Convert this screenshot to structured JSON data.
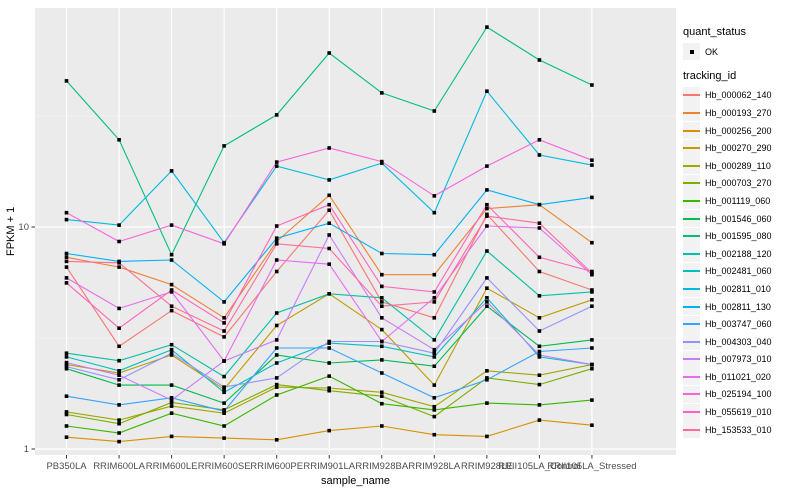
{
  "chart_data": {
    "type": "line",
    "title": "",
    "xlabel": "sample_name",
    "ylabel": "FPKM + 1",
    "yscale": "log10",
    "ylim": [
      0.93,
      97
    ],
    "yticks": [
      1,
      10
    ],
    "minor_gridlines_at": [
      3.162,
      31.62
    ],
    "grid": true,
    "legend_position": "right",
    "point_shape": "square",
    "point_color": "#000000",
    "categories": [
      "PB350LA",
      "RRIM600LA",
      "RRIM600LE",
      "RRIM600SE",
      "RRIM600PE",
      "RRIM901LA",
      "RRIM928BA",
      "RRIM928LA",
      "RRIM928LE",
      "RRII105LA_Control",
      "RRII105LA_Stressed"
    ],
    "legend": {
      "quant_status_title": "quant_status",
      "quant_status_items": [
        {
          "label": "OK",
          "shape": "point",
          "color": "#000000"
        }
      ],
      "tracking_id_title": "tracking_id"
    },
    "series": [
      {
        "name": "Hb_000062_140",
        "color": "#F8766D",
        "values": [
          6.6,
          2.9,
          4.2,
          3.2,
          6.3,
          11.9,
          4.6,
          3.9,
          11.4,
          6.3,
          5.2
        ]
      },
      {
        "name": "Hb_000193_270",
        "color": "#EA8331",
        "values": [
          7.3,
          6.6,
          5.5,
          3.9,
          8.6,
          13.9,
          6.1,
          6.1,
          12.1,
          12.6,
          8.5
        ]
      },
      {
        "name": "Hb_000256_200",
        "color": "#D89000",
        "values": [
          1.13,
          1.08,
          1.14,
          1.12,
          1.1,
          1.21,
          1.27,
          1.16,
          1.14,
          1.35,
          1.28
        ]
      },
      {
        "name": "Hb_000270_290",
        "color": "#C09B00",
        "values": [
          2.4,
          2.2,
          2.65,
          1.86,
          3.6,
          5.0,
          3.45,
          1.94,
          5.3,
          3.9,
          4.7
        ]
      },
      {
        "name": "Hb_000289_110",
        "color": "#A3A500",
        "values": [
          1.47,
          1.35,
          1.56,
          1.45,
          1.9,
          1.88,
          1.8,
          1.55,
          2.25,
          2.15,
          2.4
        ]
      },
      {
        "name": "Hb_000703_270",
        "color": "#7CAE00",
        "values": [
          1.43,
          1.3,
          1.62,
          1.5,
          1.95,
          1.83,
          1.73,
          1.4,
          2.09,
          1.95,
          2.3
        ]
      },
      {
        "name": "Hb_001119_060",
        "color": "#39B600",
        "values": [
          1.27,
          1.18,
          1.45,
          1.27,
          1.75,
          2.13,
          1.6,
          1.5,
          1.61,
          1.58,
          1.66
        ]
      },
      {
        "name": "Hb_001546_060",
        "color": "#00BB4E",
        "values": [
          2.3,
          1.94,
          1.94,
          1.61,
          2.65,
          2.44,
          2.52,
          2.36,
          4.4,
          2.9,
          3.1
        ]
      },
      {
        "name": "Hb_001595_080",
        "color": "#00BF7D",
        "values": [
          45.5,
          24.7,
          7.5,
          23.2,
          32.0,
          60.8,
          40.2,
          33.3,
          79.5,
          56.5,
          43.6
        ]
      },
      {
        "name": "Hb_002188_120",
        "color": "#00C1A3",
        "values": [
          2.7,
          2.5,
          2.95,
          2.12,
          4.1,
          5.0,
          4.8,
          3.1,
          7.8,
          4.9,
          5.1
        ]
      },
      {
        "name": "Hb_002481_060",
        "color": "#00BFC4",
        "values": [
          2.6,
          2.25,
          2.8,
          1.8,
          2.44,
          3.0,
          2.9,
          2.6,
          4.8,
          2.6,
          2.4
        ]
      },
      {
        "name": "Hb_002811_010",
        "color": "#00BAE0",
        "values": [
          10.8,
          10.2,
          17.9,
          8.5,
          18.8,
          16.3,
          19.4,
          11.6,
          40.9,
          21.1,
          19.0
        ]
      },
      {
        "name": "Hb_002811_130",
        "color": "#00B0F6",
        "values": [
          7.6,
          7.0,
          7.1,
          4.6,
          8.9,
          10.4,
          7.6,
          7.5,
          14.7,
          12.6,
          13.6
        ]
      },
      {
        "name": "Hb_003747_060",
        "color": "#35A2FF",
        "values": [
          1.73,
          1.58,
          1.7,
          1.48,
          2.85,
          2.85,
          2.2,
          1.7,
          2.05,
          2.75,
          2.85
        ]
      },
      {
        "name": "Hb_004303_040",
        "color": "#9590FF",
        "values": [
          2.35,
          2.05,
          2.7,
          1.9,
          2.09,
          3.05,
          3.05,
          2.7,
          5.9,
          3.4,
          4.4
        ]
      },
      {
        "name": "Hb_007973_010",
        "color": "#C77CFF",
        "values": [
          2.45,
          2.15,
          1.66,
          2.49,
          3.1,
          9.2,
          3.9,
          2.8,
          4.6,
          2.65,
          2.4
        ]
      },
      {
        "name": "Hb_011021_020",
        "color": "#E76BF3",
        "values": [
          5.9,
          4.3,
          5.1,
          2.49,
          7.1,
          6.8,
          3.05,
          4.8,
          10.1,
          9.9,
          6.1
        ]
      },
      {
        "name": "Hb_025194_100",
        "color": "#FA62DB",
        "values": [
          11.6,
          8.6,
          10.2,
          8.4,
          19.6,
          22.7,
          19.7,
          13.8,
          18.8,
          24.7,
          20.0
        ]
      },
      {
        "name": "Hb_055619_010",
        "color": "#FF62BC",
        "values": [
          5.6,
          3.5,
          5.2,
          3.7,
          10.1,
          12.6,
          5.4,
          5.1,
          12.6,
          7.3,
          6.3
        ]
      },
      {
        "name": "Hb_153533_010",
        "color": "#FF6A98",
        "values": [
          7.0,
          6.9,
          4.4,
          3.4,
          8.4,
          8.0,
          4.4,
          4.6,
          11.2,
          10.4,
          6.2
        ]
      }
    ]
  },
  "theme": {
    "panel_bg": "#EBEBEB",
    "grid_major": "#FFFFFF",
    "grid_minor": "#F5F5F5",
    "axis_text": "#4D4D4D",
    "axis_title": "#000000",
    "legend_key_bg": "#F2F2F2",
    "background": "#FFFFFF"
  }
}
